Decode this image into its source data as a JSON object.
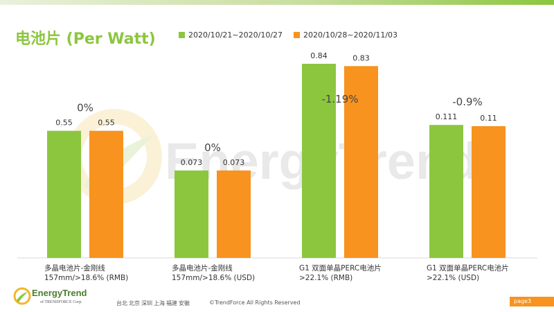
{
  "chart_data": {
    "type": "bar",
    "title": "电池片 (Per Watt)",
    "legend_position": "top",
    "grid": false,
    "categories": [
      [
        "多晶电池片-金刚线",
        "157mm/>18.6% (RMB)"
      ],
      [
        "多晶电池片-金刚线",
        "157mm/>18.6% (USD)"
      ],
      [
        "G1 双面单晶PERC电池片",
        ">22.1% (RMB)"
      ],
      [
        "G1 双面单晶PERC电池片",
        ">22.1% (USD)"
      ]
    ],
    "series": [
      {
        "name": "2020/10/21~2020/10/27",
        "color": "#8cc63f",
        "values": [
          0.55,
          0.073,
          0.84,
          0.111
        ]
      },
      {
        "name": "2020/10/28~2020/11/03",
        "color": "#f7931e",
        "values": [
          0.55,
          0.073,
          0.83,
          0.11
        ]
      }
    ],
    "value_labels": [
      [
        "0.55",
        "0.073",
        "0.84",
        "0.111"
      ],
      [
        "0.55",
        "0.073",
        "0.83",
        "0.11"
      ]
    ],
    "change_labels": [
      "0%",
      "0%",
      "-1.19%",
      "-0.9%"
    ],
    "group_scales": [
      {
        "ylim": [
          0,
          0.84
        ]
      },
      {
        "ylim": [
          0,
          0.111
        ]
      }
    ]
  },
  "watermark": {
    "text": "EnergyTrend"
  },
  "footer": {
    "logo_text": "EnergyTrend",
    "logo_sub": "of TRENDFORCE Corp.",
    "cities": "台北  北京  深圳  上海  福建  安徽",
    "copyright": "©TrendForce All Rights Reserved",
    "page": "page3"
  }
}
